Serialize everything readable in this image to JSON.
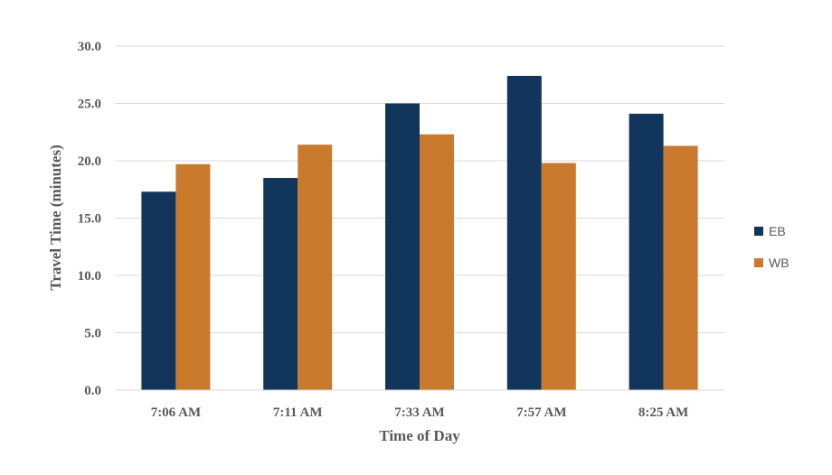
{
  "chart_data": {
    "type": "bar",
    "categories": [
      "7:06 AM",
      "7:11 AM",
      "7:33 AM",
      "7:57 AM",
      "8:25 AM"
    ],
    "series": [
      {
        "name": "EB",
        "color": "#12355b",
        "values": [
          17.3,
          18.5,
          25.0,
          27.4,
          24.1
        ]
      },
      {
        "name": "WB",
        "color": "#c97a2c",
        "values": [
          19.7,
          21.4,
          22.3,
          19.8,
          21.3
        ]
      }
    ],
    "title": "",
    "xlabel": "Time of Day",
    "ylabel": "Travel Time (minutes)",
    "ylim": [
      0,
      30
    ],
    "yticks": [
      "0.0",
      "5.0",
      "10.0",
      "15.0",
      "20.0",
      "25.0",
      "30.0"
    ],
    "grid": true,
    "legend": "right"
  }
}
